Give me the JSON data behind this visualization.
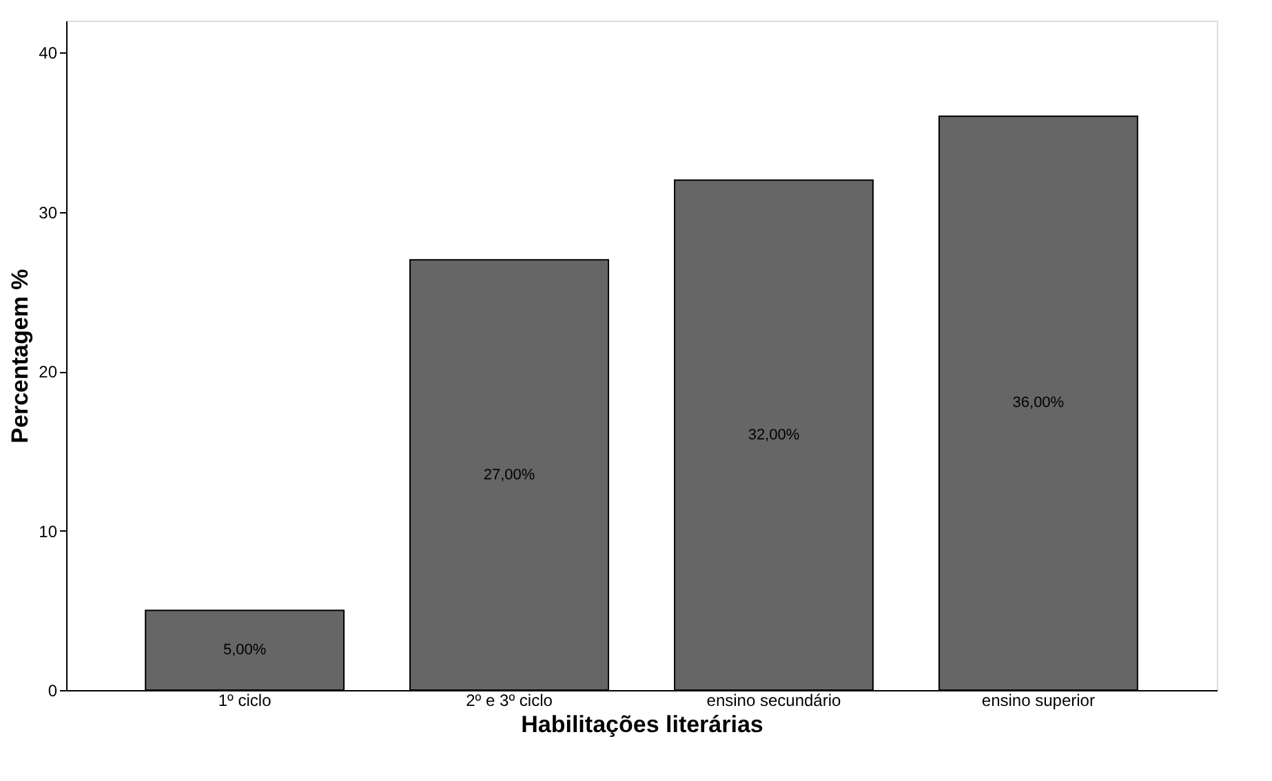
{
  "chart_data": {
    "type": "bar",
    "xlabel": "Habilitações literárias",
    "ylabel": "Percentagem %",
    "categories": [
      "1º ciclo",
      "2º e 3º ciclo",
      "ensino secundário",
      "ensino superior"
    ],
    "values": [
      5,
      27,
      32,
      36
    ],
    "color": "#666666",
    "value_labels": [
      "5,00%",
      "27,00%",
      "32,00%",
      "36,00%"
    ],
    "ylim": [
      0,
      42
    ],
    "yticks": [
      0,
      10,
      20,
      30,
      40
    ],
    "grid": false
  }
}
